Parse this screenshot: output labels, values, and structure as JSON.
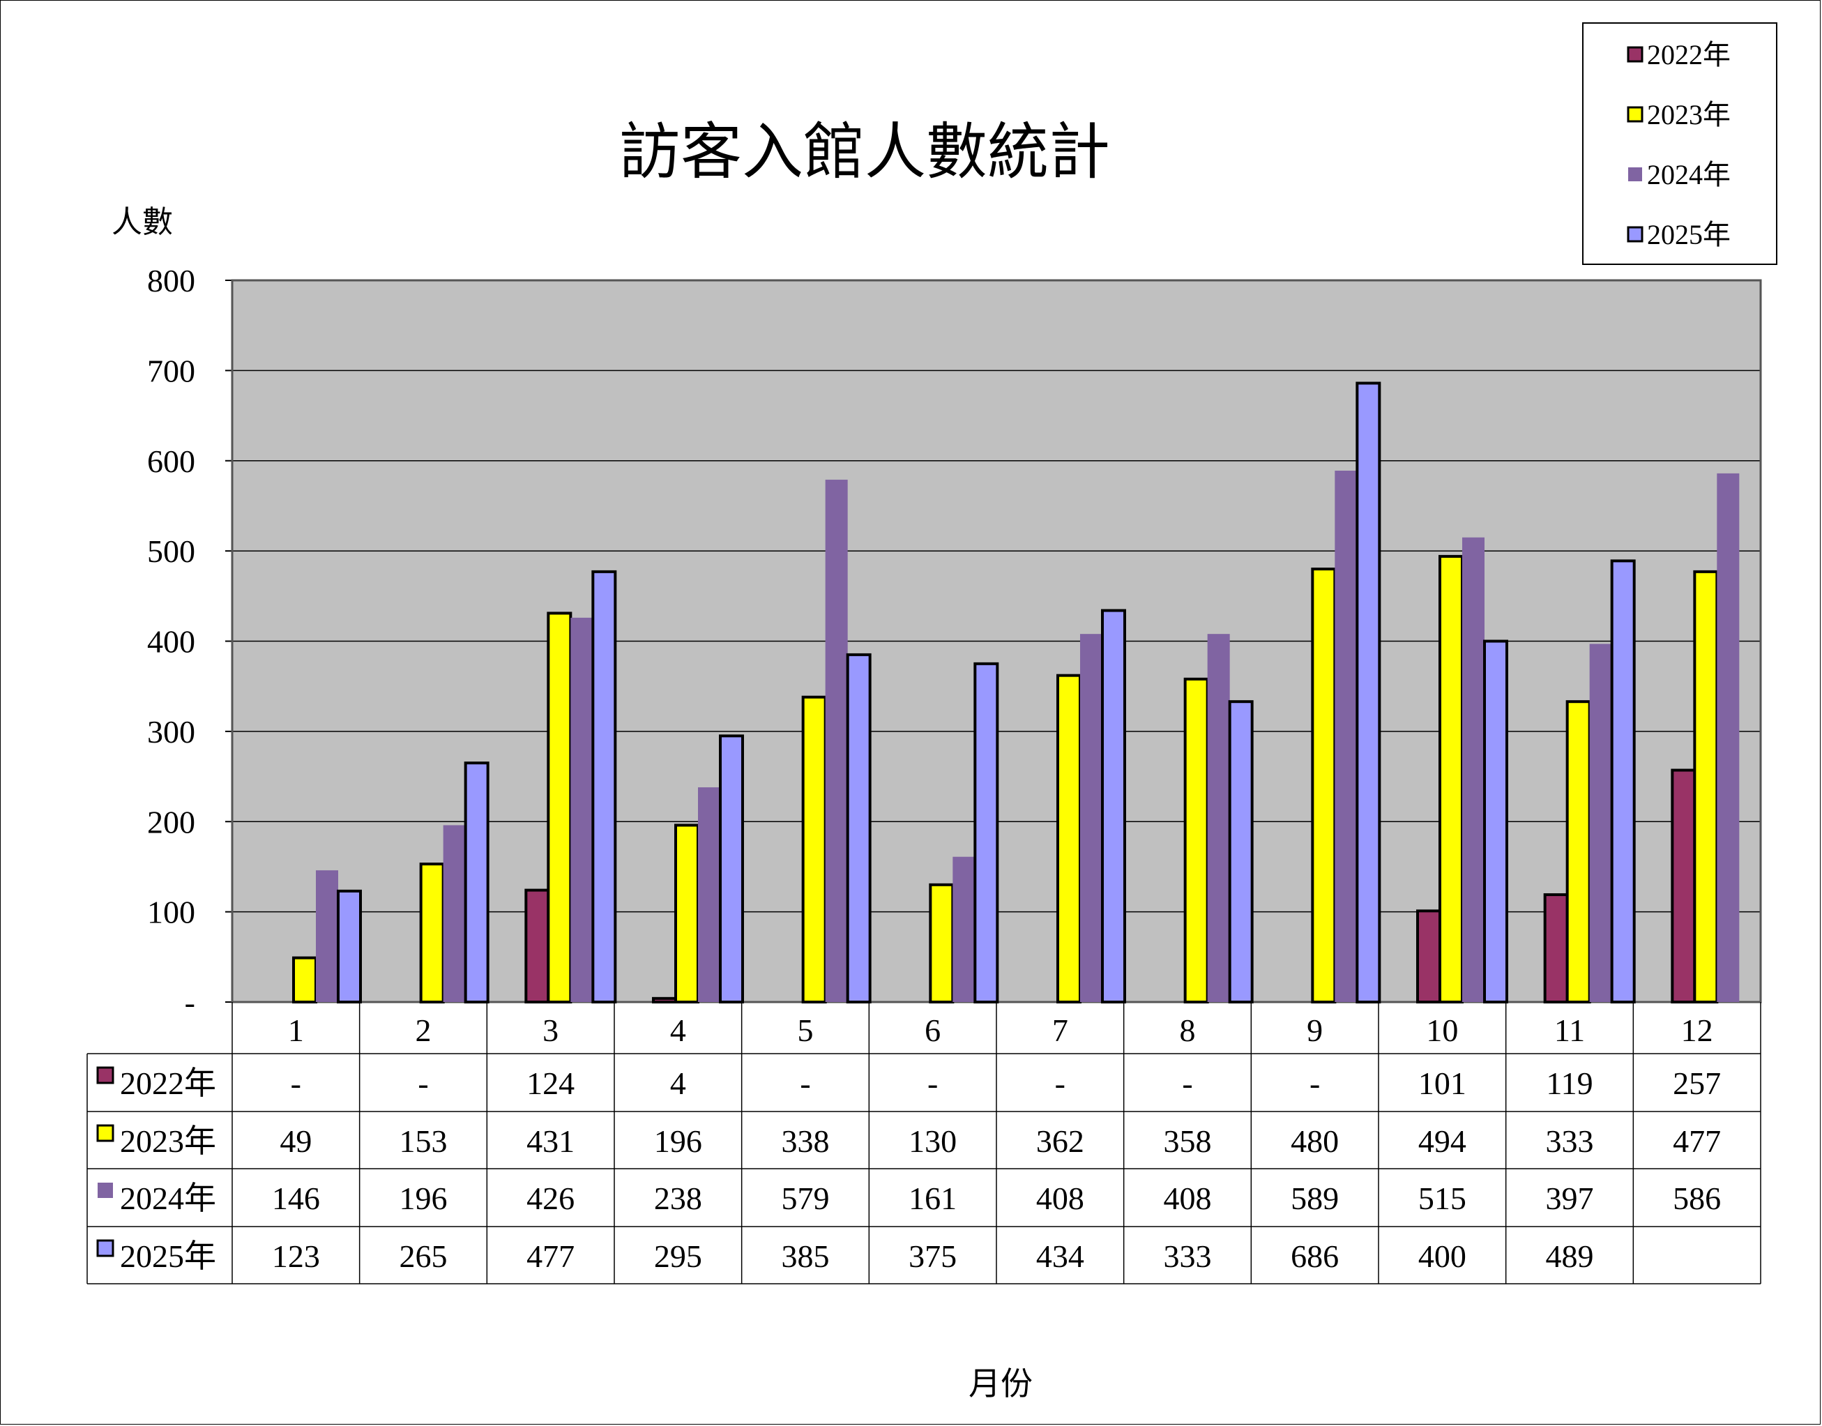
{
  "chart_data": {
    "type": "bar",
    "title": "訪客入館人數統計",
    "ylabel": "人數",
    "xlabel": "月份",
    "ylim": [
      0,
      800
    ],
    "yticks": [
      "-",
      "100",
      "200",
      "300",
      "400",
      "500",
      "600",
      "700",
      "800"
    ],
    "grid": true,
    "legend_position": "top-right",
    "categories": [
      "1",
      "2",
      "3",
      "4",
      "5",
      "6",
      "7",
      "8",
      "9",
      "10",
      "11",
      "12"
    ],
    "series": [
      {
        "name": "2022年",
        "color": "#993366",
        "values": [
          null,
          null,
          124,
          4,
          null,
          null,
          null,
          null,
          null,
          101,
          119,
          257
        ],
        "table": [
          "-",
          "-",
          "124",
          "4",
          "-",
          "-",
          "-",
          "-",
          "-",
          "101",
          "119",
          "257"
        ],
        "outlined": true
      },
      {
        "name": "2023年",
        "color": "#FFFF00",
        "values": [
          49,
          153,
          431,
          196,
          338,
          130,
          362,
          358,
          480,
          494,
          333,
          477
        ],
        "table": [
          "49",
          "153",
          "431",
          "196",
          "338",
          "130",
          "362",
          "358",
          "480",
          "494",
          "333",
          "477"
        ],
        "outlined": true
      },
      {
        "name": "2024年",
        "color": "#8064A2",
        "values": [
          146,
          196,
          426,
          238,
          579,
          161,
          408,
          408,
          589,
          515,
          397,
          586
        ],
        "table": [
          "146",
          "196",
          "426",
          "238",
          "579",
          "161",
          "408",
          "408",
          "589",
          "515",
          "397",
          "586"
        ],
        "outlined": false
      },
      {
        "name": "2025年",
        "color": "#9999FF",
        "values": [
          123,
          265,
          477,
          295,
          385,
          375,
          434,
          333,
          686,
          400,
          489,
          null
        ],
        "table": [
          "123",
          "265",
          "477",
          "295",
          "385",
          "375",
          "434",
          "333",
          "686",
          "400",
          "489",
          ""
        ],
        "outlined": true
      }
    ],
    "plot_background": "#C0C0C0"
  }
}
